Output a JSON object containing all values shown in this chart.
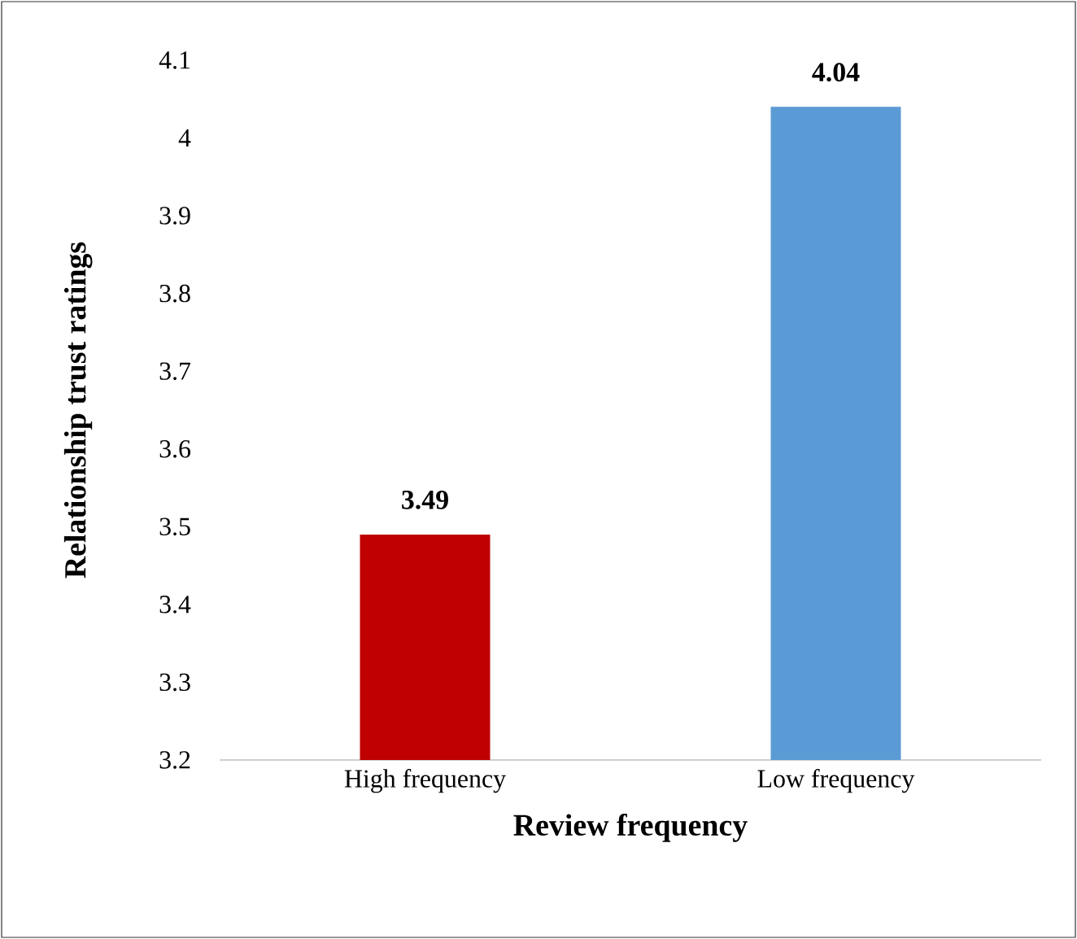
{
  "chart_data": {
    "type": "bar",
    "xlabel": "Review frequency",
    "ylabel": "Relationship trust ratings",
    "categories": [
      "High frequency",
      "Low frequency"
    ],
    "values": [
      3.49,
      4.04
    ],
    "colors": [
      "#c00000",
      "#5b9bd5"
    ],
    "ylim": [
      3.2,
      4.1
    ],
    "yticks": [
      3.2,
      3.3,
      3.4,
      3.5,
      3.6,
      3.7,
      3.8,
      3.9,
      4,
      4.1
    ],
    "data_labels": true
  }
}
